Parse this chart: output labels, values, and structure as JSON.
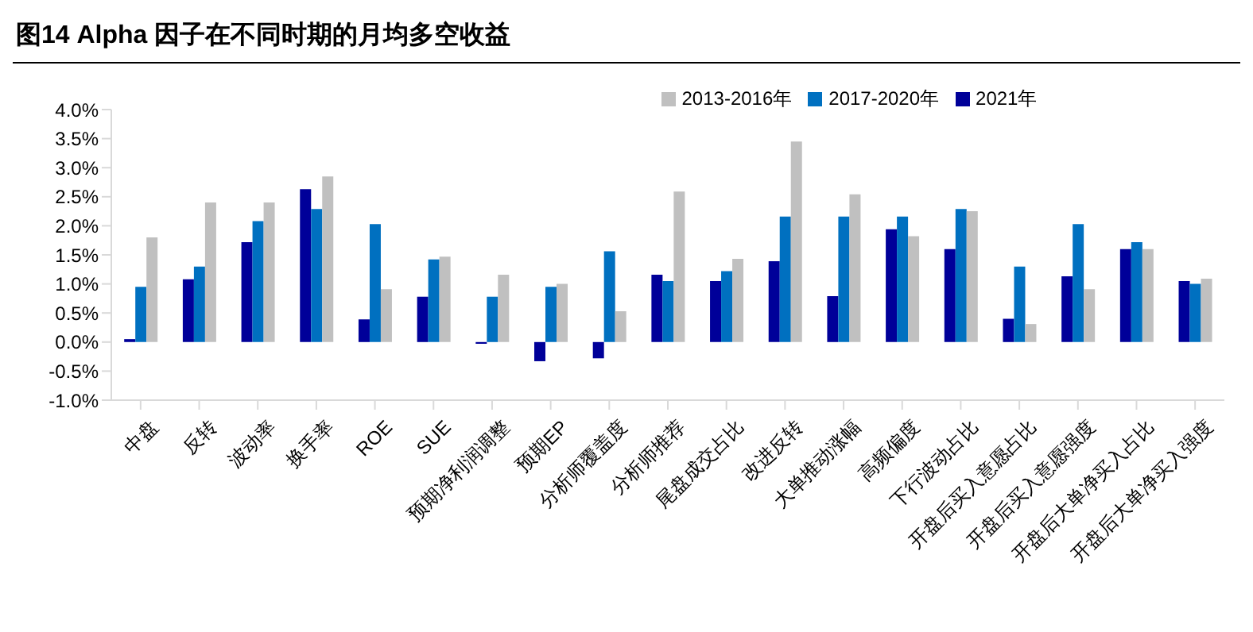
{
  "chart_data": {
    "type": "bar",
    "title": "图14 Alpha 因子在不同时期的月均多空收益",
    "categories": [
      "中盘",
      "反转",
      "波动率",
      "换手率",
      "ROE",
      "SUE",
      "预期净利润调整",
      "预期EP",
      "分析师覆盖度",
      "分析师推荐",
      "尾盘成交占比",
      "改进反转",
      "大单推动涨幅",
      "高频偏度",
      "下行波动占比",
      "开盘后买入意愿占比",
      "开盘后买入意愿强度",
      "开盘后大单净买入占比",
      "开盘后大单净买入强度"
    ],
    "series": [
      {
        "name": "2021年",
        "color": "#000099",
        "values": [
          0.05,
          1.08,
          1.72,
          2.63,
          0.39,
          0.78,
          -0.03,
          -0.33,
          -0.28,
          1.16,
          1.05,
          1.39,
          0.79,
          1.94,
          1.6,
          0.4,
          1.13,
          1.6,
          1.05
        ]
      },
      {
        "name": "2017-2020年",
        "color": "#0070c0",
        "values": [
          0.95,
          1.3,
          2.08,
          2.29,
          2.03,
          1.42,
          0.78,
          0.95,
          1.56,
          1.05,
          1.22,
          2.16,
          2.16,
          2.16,
          2.29,
          1.3,
          2.03,
          1.72,
          1.0
        ]
      },
      {
        "name": "2013-2016年",
        "color": "#c0c0c0",
        "values": [
          1.8,
          2.4,
          2.4,
          2.85,
          0.91,
          1.47,
          1.16,
          1.0,
          0.53,
          2.59,
          1.43,
          3.45,
          2.54,
          1.82,
          2.25,
          0.31,
          0.91,
          1.6,
          1.09
        ]
      }
    ],
    "ylim": [
      -1.0,
      4.0
    ],
    "yticks": [
      {
        "value": -1.0,
        "label": "-1.0%"
      },
      {
        "value": -0.5,
        "label": "-0.5%"
      },
      {
        "value": 0.0,
        "label": "0.0%"
      },
      {
        "value": 0.5,
        "label": "0.5%"
      },
      {
        "value": 1.0,
        "label": "1.0%"
      },
      {
        "value": 1.5,
        "label": "1.5%"
      },
      {
        "value": 2.0,
        "label": "2.0%"
      },
      {
        "value": 2.5,
        "label": "2.5%"
      },
      {
        "value": 3.0,
        "label": "3.0%"
      },
      {
        "value": 3.5,
        "label": "3.5%"
      },
      {
        "value": 4.0,
        "label": "4.0%"
      }
    ],
    "grid": false,
    "legend": "top"
  }
}
